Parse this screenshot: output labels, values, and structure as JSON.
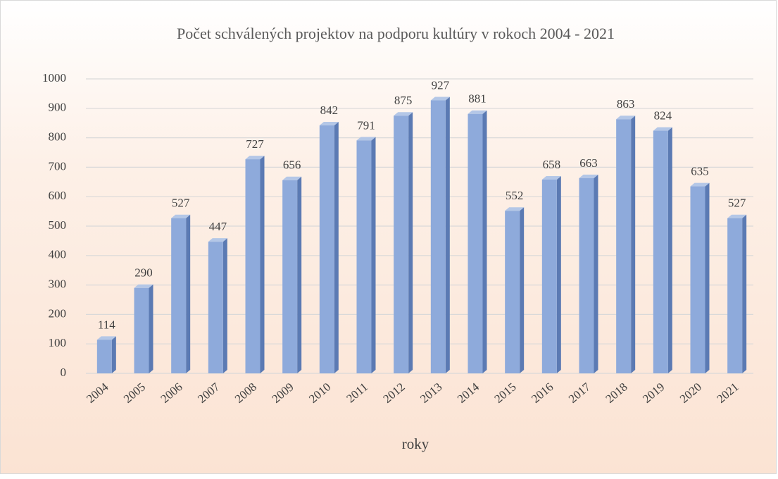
{
  "chart_data": {
    "type": "bar",
    "title": "Počet schválených projektov na podporu kultúry v rokoch 2004 - 2021",
    "x_label": "roky",
    "categories": [
      "2004",
      "2005",
      "2006",
      "2007",
      "2008",
      "2009",
      "2010",
      "2011",
      "2012",
      "2013",
      "2014",
      "2015",
      "2016",
      "2017",
      "2018",
      "2019",
      "2020",
      "2021"
    ],
    "values": [
      114,
      290,
      527,
      447,
      727,
      656,
      842,
      791,
      875,
      927,
      881,
      552,
      658,
      663,
      863,
      824,
      635,
      527
    ],
    "color": "#8eaadb",
    "ylim": [
      0,
      1000
    ],
    "yticks": [
      0,
      100,
      200,
      300,
      400,
      500,
      600,
      700,
      800,
      900,
      1000
    ],
    "grid": true
  }
}
